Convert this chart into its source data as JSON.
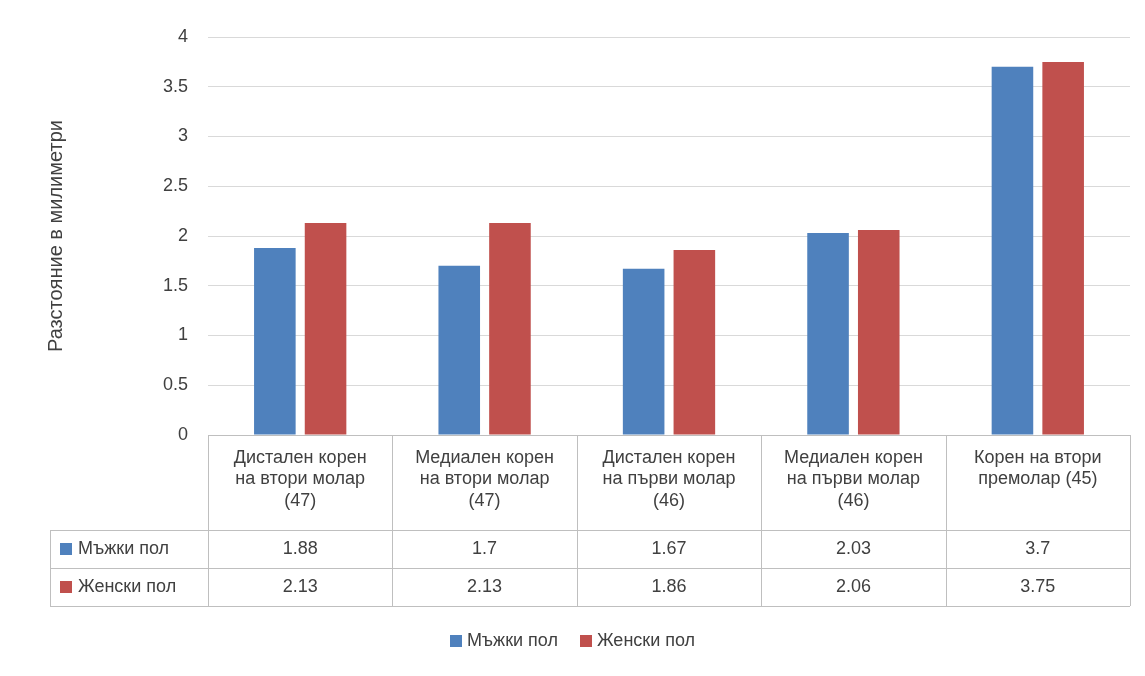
{
  "chart_data": {
    "type": "bar",
    "ylabel": "Разстояние в милиметри",
    "categories": [
      "Дистален корен на втори молар (47)",
      "Медиален корен на втори молар (47)",
      "Дистален корен на първи молар (46)",
      "Медиален корен на първи молар (46)",
      "Корен на втори премолар (45)"
    ],
    "series": [
      {
        "name": "Мъжки пол",
        "color": "#4f81bd",
        "values": [
          1.88,
          1.7,
          1.67,
          2.03,
          3.7
        ]
      },
      {
        "name": "Женски пол",
        "color": "#c0504d",
        "values": [
          2.13,
          2.13,
          1.86,
          2.06,
          3.75
        ]
      }
    ],
    "ylim": [
      0,
      4
    ],
    "yticks": [
      0,
      0.5,
      1,
      1.5,
      2,
      2.5,
      3,
      3.5,
      4
    ],
    "grid": "y",
    "legend": "bottom",
    "data_labels": true
  }
}
